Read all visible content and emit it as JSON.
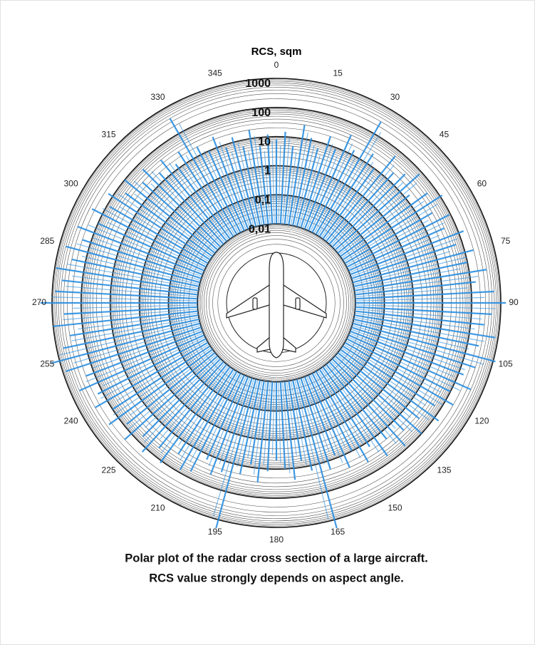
{
  "chart_data": {
    "type": "polar",
    "title": "RCS, sqm",
    "caption": [
      "Polar plot of the radar cross section of a large aircraft.",
      "RCS value strongly depends on aspect angle."
    ],
    "rscale": "log",
    "rlim": [
      0.001,
      1000
    ],
    "rticks": [
      {
        "value": 0.01,
        "label": "0,01"
      },
      {
        "value": 0.1,
        "label": "0,1"
      },
      1,
      10,
      100,
      1000
    ],
    "xticks": [
      0,
      15,
      30,
      45,
      60,
      75,
      90,
      105,
      120,
      135,
      150,
      165,
      180,
      195,
      210,
      225,
      240,
      255,
      270,
      285,
      300,
      315,
      330,
      345
    ],
    "direction": "clockwise",
    "grid": true,
    "color": "#2b8fe0",
    "x": [
      0,
      3,
      6,
      9,
      12,
      15,
      18,
      21,
      24,
      27,
      30,
      33,
      36,
      39,
      42,
      45,
      48,
      51,
      54,
      57,
      60,
      63,
      66,
      69,
      72,
      75,
      78,
      81,
      84,
      87,
      90,
      93,
      96,
      99,
      102,
      105,
      108,
      111,
      114,
      117,
      120,
      123,
      126,
      129,
      132,
      135,
      138,
      141,
      144,
      147,
      150,
      153,
      156,
      159,
      162,
      165,
      168,
      171,
      174,
      177,
      180,
      183,
      186,
      189,
      192,
      195,
      198,
      201,
      204,
      207,
      210,
      213,
      216,
      219,
      222,
      225,
      228,
      231,
      234,
      237,
      240,
      243,
      246,
      249,
      252,
      255,
      258,
      261,
      264,
      267,
      270,
      273,
      276,
      279,
      282,
      285,
      288,
      291,
      294,
      297,
      300,
      303,
      306,
      309,
      312,
      315,
      318,
      321,
      324,
      327,
      330,
      333,
      336,
      339,
      342,
      345,
      348,
      351,
      354,
      357
    ],
    "values": [
      8,
      15,
      5,
      30,
      12,
      6,
      20,
      9,
      40,
      15,
      300,
      25,
      10,
      60,
      20,
      35,
      80,
      15,
      50,
      120,
      30,
      90,
      40,
      150,
      60,
      200,
      100,
      400,
      150,
      600,
      1500,
      500,
      300,
      800,
      250,
      1200,
      300,
      150,
      400,
      100,
      200,
      60,
      150,
      40,
      100,
      30,
      80,
      20,
      60,
      15,
      40,
      10,
      30,
      8,
      20,
      2000,
      15,
      6,
      25,
      10,
      5,
      12,
      30,
      8,
      20,
      2000,
      25,
      40,
      15,
      60,
      80,
      30,
      120,
      50,
      150,
      60,
      200,
      80,
      250,
      100,
      300,
      150,
      500,
      200,
      800,
      2000,
      600,
      300,
      1000,
      400,
      2500,
      800,
      500,
      900,
      300,
      600,
      200,
      400,
      100,
      250,
      80,
      150,
      50,
      100,
      30,
      60,
      20,
      40,
      15,
      30,
      400,
      20,
      10,
      25,
      8,
      15,
      6,
      20,
      5,
      12
    ]
  }
}
